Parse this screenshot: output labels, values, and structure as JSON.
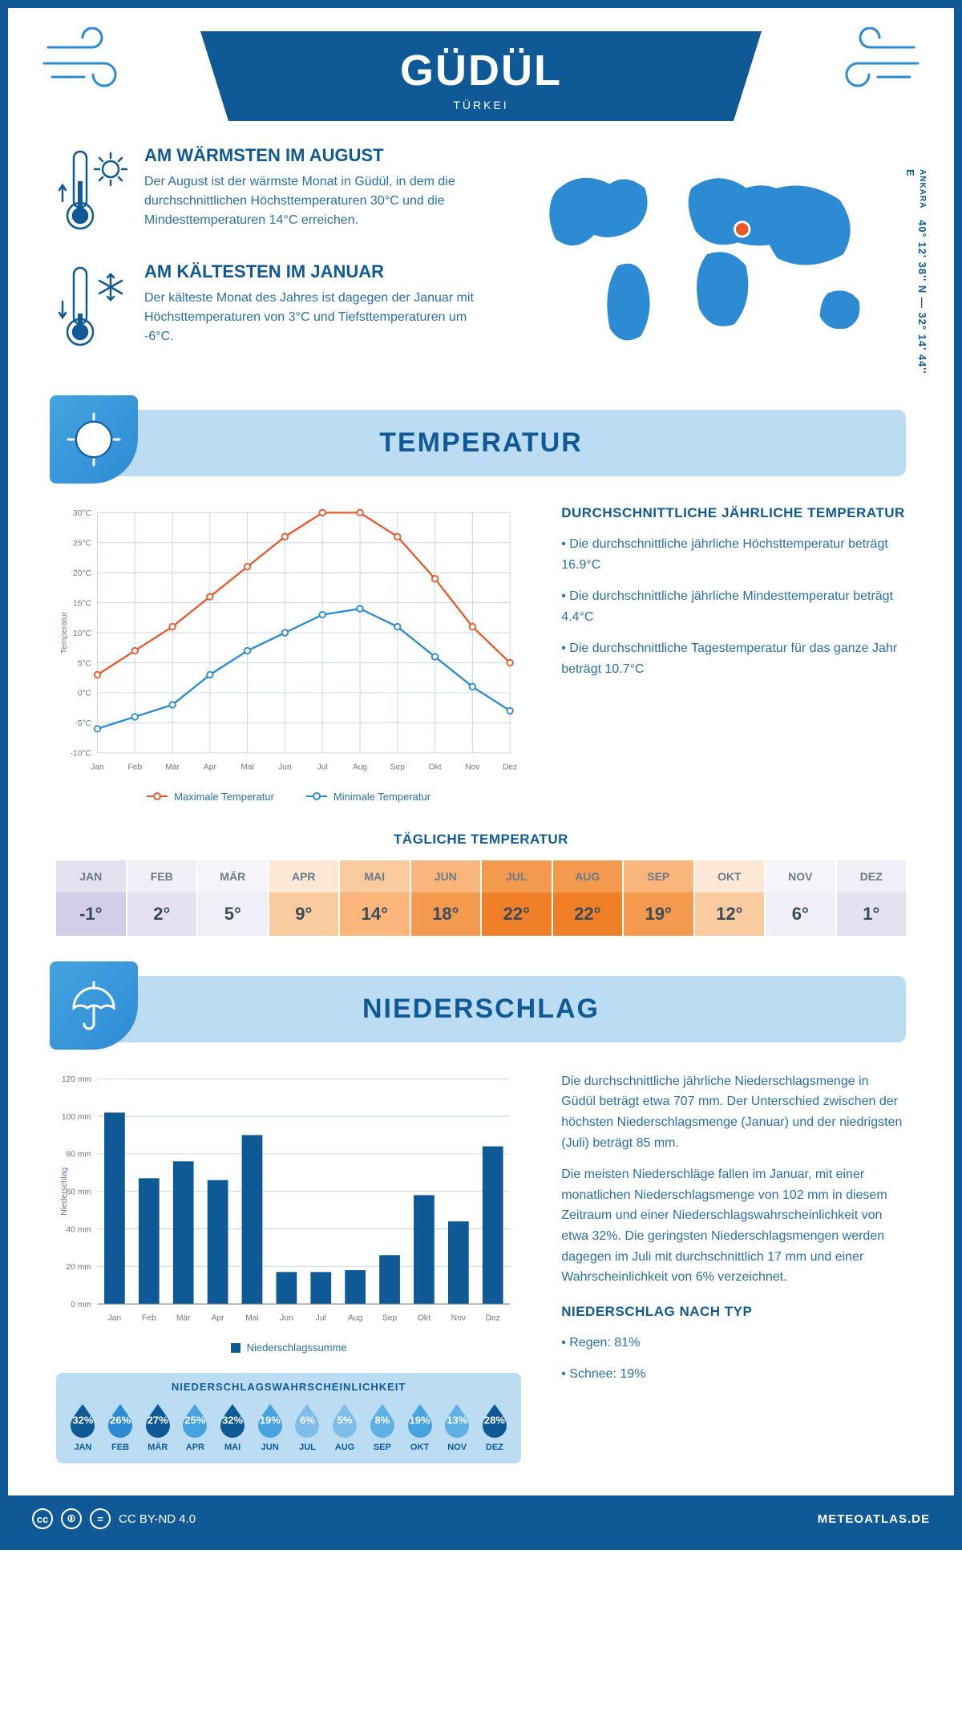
{
  "header": {
    "city": "GÜDÜL",
    "country": "TÜRKEI"
  },
  "coords": {
    "text": "40° 12' 38'' N — 32° 14' 44'' E",
    "label": "ANKARA"
  },
  "facts": {
    "warm": {
      "title": "AM WÄRMSTEN IM AUGUST",
      "text": "Der August ist der wärmste Monat in Güdül, in dem die durchschnittlichen Höchsttemperaturen 30°C und die Mindesttemperaturen 14°C erreichen."
    },
    "cold": {
      "title": "AM KÄLTESTEN IM JANUAR",
      "text": "Der kälteste Monat des Jahres ist dagegen der Januar mit Höchsttemperaturen von 3°C und Tiefsttemperaturen um -6°C."
    }
  },
  "section_temp_title": "TEMPERATUR",
  "section_precip_title": "NIEDERSCHLAG",
  "temp_chart": {
    "months": [
      "Jan",
      "Feb",
      "Mär",
      "Apr",
      "Mai",
      "Jun",
      "Jul",
      "Aug",
      "Sep",
      "Okt",
      "Nov",
      "Dez"
    ],
    "max": [
      3,
      7,
      11,
      16,
      21,
      26,
      30,
      30,
      26,
      19,
      11,
      5
    ],
    "min": [
      -6,
      -4,
      -2,
      3,
      7,
      10,
      13,
      14,
      11,
      6,
      1,
      -3
    ],
    "ylim": [
      -10,
      30
    ],
    "ytick_step": 5,
    "ylabel": "Temperatur",
    "max_color": "#e85a2d",
    "min_color": "#2d8bd4",
    "grid_color": "#c5d6e6",
    "background": "#ffffff",
    "legend_max": "Maximale Temperatur",
    "legend_min": "Minimale Temperatur"
  },
  "temp_text": {
    "title": "DURCHSCHNITTLICHE JÄHRLICHE TEMPERATUR",
    "b1": "• Die durchschnittliche jährliche Höchsttemperatur beträgt 16.9°C",
    "b2": "• Die durchschnittliche jährliche Mindesttemperatur beträgt 4.4°C",
    "b3": "• Die durchschnittliche Tagestemperatur für das ganze Jahr beträgt 10.7°C"
  },
  "daily": {
    "title": "TÄGLICHE TEMPERATUR",
    "months": [
      "JAN",
      "FEB",
      "MÄR",
      "APR",
      "MAI",
      "JUN",
      "JUL",
      "AUG",
      "SEP",
      "OKT",
      "NOV",
      "DEZ"
    ],
    "values": [
      "-1°",
      "2°",
      "5°",
      "9°",
      "14°",
      "18°",
      "22°",
      "22°",
      "19°",
      "12°",
      "6°",
      "1°"
    ],
    "header_colors": [
      "#e4e1f0",
      "#f0eef6",
      "#f6f4fa",
      "#fde8d5",
      "#fbcba0",
      "#f9b57a",
      "#f49a4e",
      "#f49a4e",
      "#f9b57a",
      "#fde8d5",
      "#f6f4fa",
      "#f0eef6"
    ],
    "value_colors": [
      "#d3cee8",
      "#e4e1f0",
      "#f0eef6",
      "#fbcba0",
      "#f9b57a",
      "#f49a4e",
      "#ef7f26",
      "#ef7f26",
      "#f49a4e",
      "#fbcba0",
      "#f0eef6",
      "#e4e1f0"
    ]
  },
  "precip_chart": {
    "months": [
      "Jan",
      "Feb",
      "Mär",
      "Apr",
      "Mai",
      "Jun",
      "Jul",
      "Aug",
      "Sep",
      "Okt",
      "Nov",
      "Dez"
    ],
    "values": [
      102,
      67,
      76,
      66,
      90,
      17,
      17,
      18,
      26,
      58,
      44,
      84
    ],
    "ylim": [
      0,
      120
    ],
    "ytick_step": 20,
    "ylabel": "Niederschlag",
    "bar_color": "#0f5a96",
    "grid_color": "#c5d6e6",
    "legend": "Niederschlagssumme",
    "bar_width": 0.6
  },
  "precip_text": {
    "p1": "Die durchschnittliche jährliche Niederschlagsmenge in Güdül beträgt etwa 707 mm. Der Unterschied zwischen der höchsten Niederschlagsmenge (Januar) und der niedrigsten (Juli) beträgt 85 mm.",
    "p2": "Die meisten Niederschläge fallen im Januar, mit einer monatlichen Niederschlagsmenge von 102 mm in diesem Zeitraum und einer Niederschlagswahrscheinlichkeit von etwa 32%. Die geringsten Niederschlagsmengen werden dagegen im Juli mit durchschnittlich 17 mm und einer Wahrscheinlichkeit von 6% verzeichnet.",
    "type_title": "NIEDERSCHLAG NACH TYP",
    "type_rain": "• Regen: 81%",
    "type_snow": "• Schnee: 19%"
  },
  "prob": {
    "title": "NIEDERSCHLAGSWAHRSCHEINLICHKEIT",
    "months": [
      "JAN",
      "FEB",
      "MÄR",
      "APR",
      "MAI",
      "JUN",
      "JUL",
      "AUG",
      "SEP",
      "OKT",
      "NOV",
      "DEZ"
    ],
    "pct": [
      "32%",
      "26%",
      "27%",
      "25%",
      "32%",
      "19%",
      "6%",
      "5%",
      "8%",
      "19%",
      "13%",
      "28%"
    ],
    "colors": [
      "#0f5a96",
      "#2d8bd4",
      "#0f5a96",
      "#46a3e0",
      "#0f5a96",
      "#46a3e0",
      "#7fbde8",
      "#7fbde8",
      "#5fb0e4",
      "#46a3e0",
      "#5fb0e4",
      "#0f5a96"
    ]
  },
  "footer": {
    "license": "CC BY-ND 4.0",
    "site": "METEOATLAS.DE"
  }
}
